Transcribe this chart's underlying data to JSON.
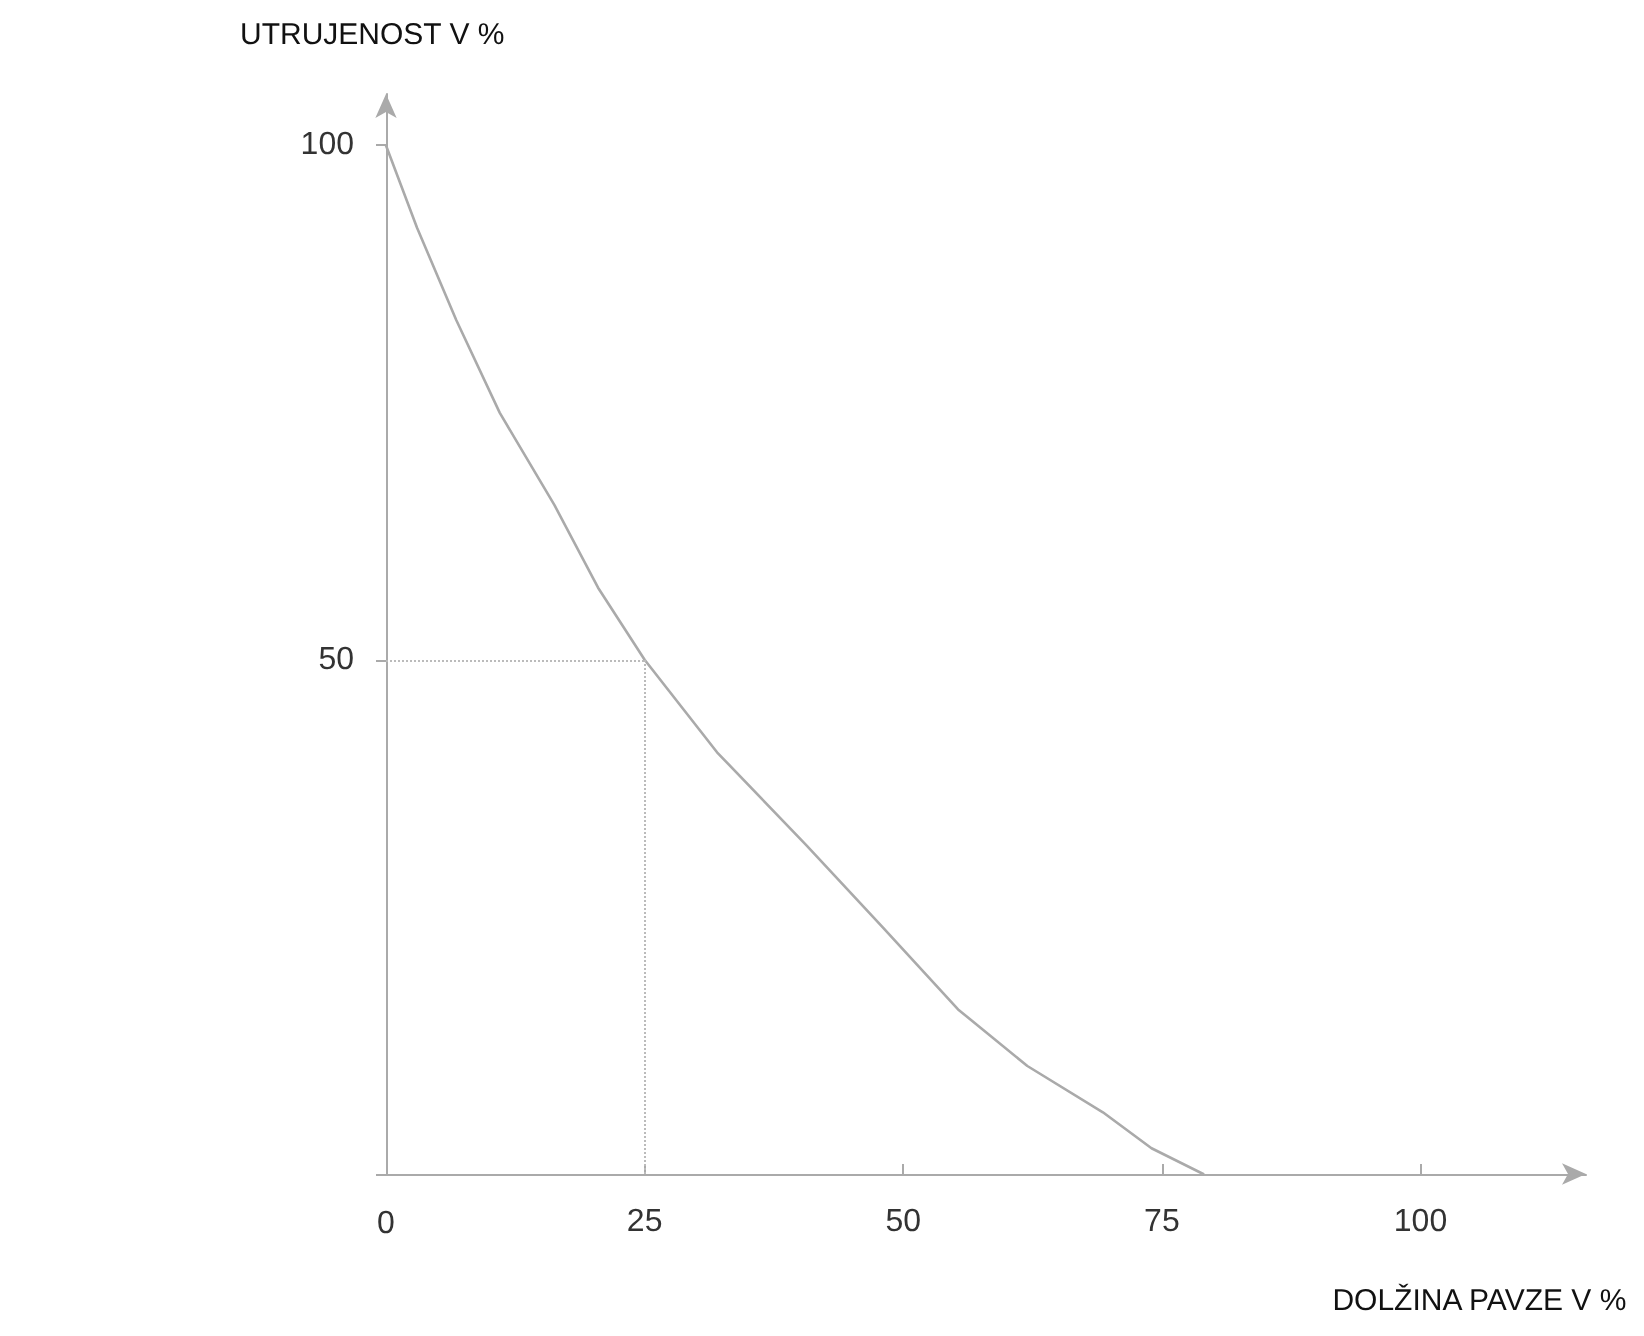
{
  "chart_data": {
    "type": "line",
    "xlabel": "DOLŽINA PAVZE V %",
    "ylabel": "UTRUJENOST V %",
    "x": [
      0,
      3,
      6.8,
      11,
      16.3,
      20.5,
      25,
      32,
      40.6,
      48,
      55.3,
      62,
      69.3,
      74,
      79
    ],
    "series": [
      {
        "color": "#aaaaaa",
        "values": [
          100,
          92,
          83,
          74,
          65,
          57,
          50,
          41,
          32,
          24,
          16,
          10.5,
          6,
          2.5,
          0
        ]
      }
    ],
    "xlim": [
      0,
      116
    ],
    "ylim": [
      0,
      105
    ],
    "xticks": [
      0,
      25,
      50,
      75,
      100
    ],
    "yticks": [
      {
        "value": 0,
        "label": null
      },
      50,
      100
    ],
    "ref_lines": [
      {
        "axis": "x",
        "value": 25,
        "color": "#bbbbbb",
        "line_style": "dotted"
      },
      {
        "axis": "y",
        "value": 50,
        "color": "#bbbbbb",
        "line_style": "dotted"
      }
    ],
    "grid": false,
    "marker": "none",
    "line_style": "solid"
  }
}
